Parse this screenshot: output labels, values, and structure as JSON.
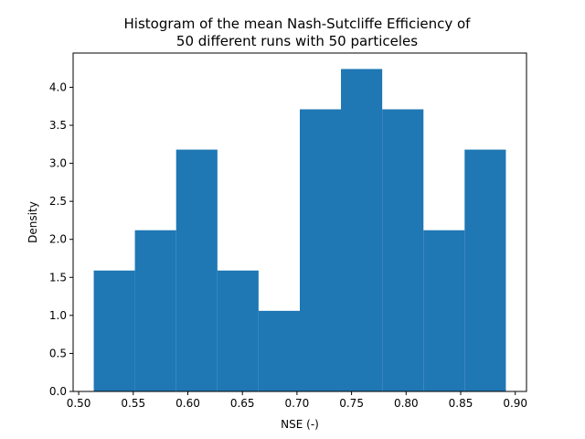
{
  "chart_data": {
    "type": "bar",
    "title_line1": "Histogram of the mean Nash-Sutcliffe Efficiency of",
    "title_line2": "50 different runs with 50 particeles",
    "xlabel": "NSE (-)",
    "ylabel": "Density",
    "bin_edges": [
      0.5138,
      0.5515,
      0.5893,
      0.6271,
      0.6648,
      0.7026,
      0.7403,
      0.7781,
      0.8159,
      0.8536,
      0.8914
    ],
    "values": [
      1.59,
      2.12,
      3.18,
      1.59,
      1.06,
      3.71,
      4.24,
      3.71,
      2.12,
      3.18
    ],
    "xlim": [
      0.4949,
      0.9103
    ],
    "ylim": [
      0,
      4.45
    ],
    "xticks": [
      "0.50",
      "0.55",
      "0.60",
      "0.65",
      "0.70",
      "0.75",
      "0.80",
      "0.85",
      "0.90"
    ],
    "xtick_values": [
      0.5,
      0.55,
      0.6,
      0.65,
      0.7,
      0.75,
      0.8,
      0.85,
      0.9
    ],
    "yticks": [
      "0.0",
      "0.5",
      "1.0",
      "1.5",
      "2.0",
      "2.5",
      "3.0",
      "3.5",
      "4.0"
    ],
    "ytick_values": [
      0.0,
      0.5,
      1.0,
      1.5,
      2.0,
      2.5,
      3.0,
      3.5,
      4.0
    ],
    "bar_color": "#1f77b4",
    "grid": false
  }
}
